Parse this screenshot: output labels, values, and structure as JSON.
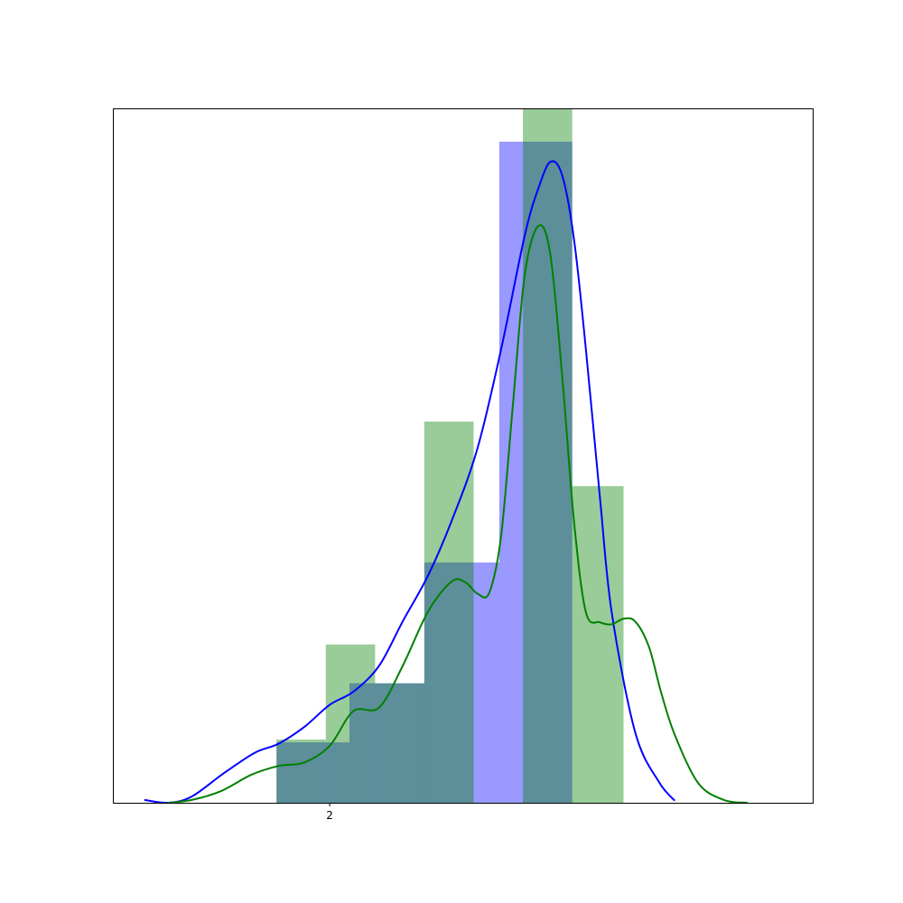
{
  "chart_data": {
    "type": "bar",
    "title": "",
    "xlabel": "",
    "ylabel": "",
    "x_ticks": [
      {
        "value": 2.0,
        "label": "2"
      }
    ],
    "xlim": [
      0.9,
      4.45
    ],
    "ylim": [
      0,
      1.0
    ],
    "grid": false,
    "legend": "none",
    "series": [
      {
        "type": "histogram",
        "color": "#0000ff",
        "alpha": 0.4,
        "bins": [
          {
            "x0": 1.73,
            "x1": 2.1,
            "value": 0.087
          },
          {
            "x0": 2.1,
            "x1": 2.48,
            "value": 0.172
          },
          {
            "x0": 2.48,
            "x1": 2.86,
            "value": 0.346
          },
          {
            "x0": 2.86,
            "x1": 3.23,
            "value": 0.952
          }
        ]
      },
      {
        "type": "histogram",
        "color": "#008000",
        "alpha": 0.4,
        "bins": [
          {
            "x0": 1.73,
            "x1": 1.98,
            "value": 0.091
          },
          {
            "x0": 1.98,
            "x1": 2.23,
            "value": 0.228
          },
          {
            "x0": 2.23,
            "x1": 2.48,
            "value": 0.172
          },
          {
            "x0": 2.48,
            "x1": 2.73,
            "value": 0.549
          },
          {
            "x0": 2.73,
            "x1": 2.98,
            "value": 0.0
          },
          {
            "x0": 2.98,
            "x1": 3.23,
            "value": 1.0
          },
          {
            "x0": 3.23,
            "x1": 3.49,
            "value": 0.456
          }
        ]
      },
      {
        "type": "kde",
        "color": "#0000ff",
        "x": [
          1.06,
          1.18,
          1.3,
          1.46,
          1.62,
          1.74,
          1.87,
          2.0,
          2.12,
          2.25,
          2.37,
          2.5,
          2.62,
          2.75,
          2.87,
          2.99,
          3.06,
          3.12,
          3.18,
          3.24,
          3.3,
          3.37,
          3.43,
          3.55,
          3.67,
          3.75
        ],
        "y": [
          0.004,
          0.0,
          0.009,
          0.042,
          0.072,
          0.085,
          0.109,
          0.141,
          0.16,
          0.197,
          0.261,
          0.328,
          0.407,
          0.511,
          0.654,
          0.818,
          0.886,
          0.923,
          0.903,
          0.81,
          0.652,
          0.442,
          0.275,
          0.101,
          0.03,
          0.003
        ]
      },
      {
        "type": "kde",
        "color": "#008000",
        "x": [
          1.18,
          1.3,
          1.45,
          1.6,
          1.74,
          1.87,
          2.0,
          2.12,
          2.25,
          2.37,
          2.5,
          2.62,
          2.69,
          2.75,
          2.81,
          2.87,
          2.93,
          2.99,
          3.06,
          3.12,
          3.18,
          3.24,
          3.3,
          3.37,
          3.43,
          3.49,
          3.55,
          3.62,
          3.68,
          3.75,
          3.87,
          4.0,
          4.12
        ],
        "y": [
          0.0,
          0.004,
          0.017,
          0.04,
          0.053,
          0.058,
          0.082,
          0.132,
          0.137,
          0.197,
          0.276,
          0.319,
          0.317,
          0.301,
          0.303,
          0.386,
          0.576,
          0.762,
          0.831,
          0.788,
          0.612,
          0.403,
          0.274,
          0.26,
          0.257,
          0.265,
          0.261,
          0.224,
          0.16,
          0.098,
          0.028,
          0.004,
          0.0
        ]
      }
    ]
  }
}
